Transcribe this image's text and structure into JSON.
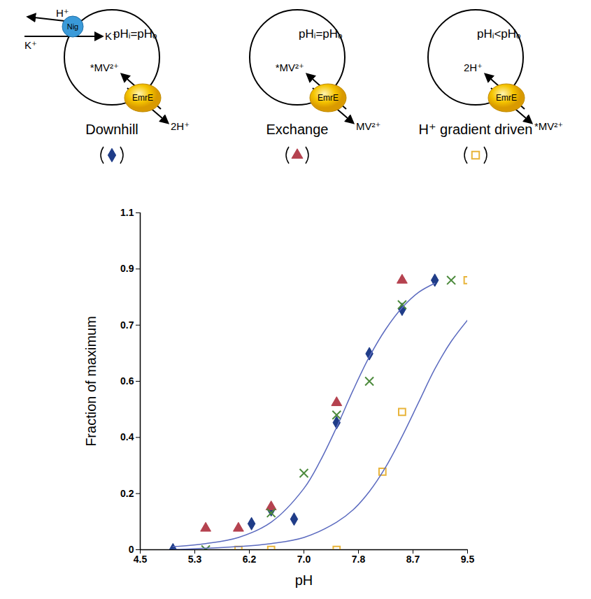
{
  "chart_data": {
    "type": "scatter",
    "x_label": "pH",
    "y_label": "Fraction of maximum",
    "xlim": [
      4.5,
      9.5
    ],
    "ylim": [
      0,
      1.1
    ],
    "xticks": [
      4.5,
      {
        "value": 5.3333,
        "label": "5.3"
      },
      {
        "value": 6.1667,
        "label": "6.2"
      },
      {
        "value": 7,
        "label": "7.0"
      },
      {
        "value": 7.8333,
        "label": "7.8"
      },
      {
        "value": 8.6667,
        "label": "8.7"
      },
      9.5
    ],
    "yticks": [
      0,
      {
        "value": 0.1833,
        "label": "0.2"
      },
      {
        "value": 0.3667,
        "label": "0.4"
      },
      {
        "value": 0.55,
        "label": "0.6"
      },
      {
        "value": 0.7333,
        "label": "0.7"
      },
      {
        "value": 0.9167,
        "label": "0.9"
      },
      1.1
    ],
    "grid": false,
    "series": [
      {
        "name": "Downhill",
        "type": "scatter",
        "marker": "diamond",
        "color": "#1f3c88",
        "x": [
          5.0,
          6.2,
          6.5,
          6.85,
          7.5,
          8.0,
          8.5,
          9.0
        ],
        "values": [
          0.0,
          0.085,
          0.13,
          0.1,
          0.415,
          0.64,
          0.785,
          0.88
        ]
      },
      {
        "name": "Exchange",
        "type": "scatter",
        "marker": "triangle",
        "color": "#b5424f",
        "x": [
          5.5,
          6.0,
          6.5,
          7.5,
          8.5
        ],
        "values": [
          0.07,
          0.07,
          0.14,
          0.48,
          0.88
        ]
      },
      {
        "name": null,
        "type": "scatter",
        "marker": "times",
        "color": "#4c8a3c",
        "x": [
          5.5,
          6.5,
          7.0,
          7.5,
          8.0,
          8.5,
          9.25
        ],
        "values": [
          0.0,
          0.12,
          0.25,
          0.44,
          0.55,
          0.8,
          0.88
        ]
      },
      {
        "name": "H⁺ gradient driven",
        "type": "scatter",
        "marker": "open-square",
        "color": "#e8b43a",
        "x": [
          6.0,
          6.5,
          7.5,
          8.2,
          8.5,
          9.5
        ],
        "values": [
          0.0,
          0.0,
          0.0,
          0.255,
          0.45,
          0.88
        ]
      },
      {
        "name": null,
        "type": "line",
        "line_style": "solid",
        "color": "#5b6abf",
        "x": [
          5.0,
          5.5,
          6.0,
          6.5,
          7.0,
          7.25,
          7.5,
          7.75,
          8.0,
          8.25,
          8.5,
          8.75,
          9.0
        ],
        "values": [
          0.01,
          0.02,
          0.04,
          0.09,
          0.2,
          0.29,
          0.4,
          0.52,
          0.63,
          0.72,
          0.79,
          0.84,
          0.87
        ]
      },
      {
        "name": null,
        "type": "line",
        "line_style": "solid",
        "color": "#5b6abf",
        "x": [
          5.0,
          5.5,
          6.0,
          6.5,
          7.0,
          7.5,
          7.75,
          8.0,
          8.25,
          8.5,
          8.75,
          9.0,
          9.25,
          9.5
        ],
        "values": [
          0.0,
          0.005,
          0.01,
          0.02,
          0.04,
          0.09,
          0.13,
          0.19,
          0.27,
          0.37,
          0.48,
          0.59,
          0.68,
          0.75
        ]
      }
    ]
  },
  "schematics": [
    {
      "name": "Downhill",
      "condition": "pHᵢ=pHₒ",
      "ionophore": "Nig",
      "ionophore_labels": [
        "H⁺",
        "K⁺",
        "K⁺"
      ],
      "transporter": "EmrE",
      "in_label": "*MV²⁺",
      "out_label": "2H⁺"
    },
    {
      "name": "Exchange",
      "condition": "pHᵢ=pHₒ",
      "transporter": "EmrE",
      "in_label": "*MV²⁺",
      "out_label": "MV²⁺"
    },
    {
      "name": "H⁺ gradient driven",
      "condition": "pHᵢ<pHₒ",
      "transporter": "EmrE",
      "in_label": "2H⁺",
      "out_label": "*MV²⁺"
    }
  ]
}
